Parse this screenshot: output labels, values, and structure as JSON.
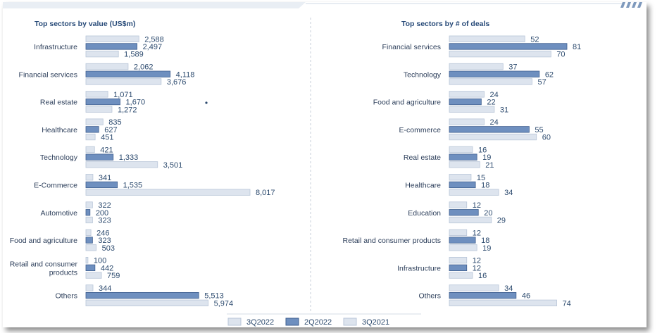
{
  "legend": [
    {
      "name": "3Q2022",
      "color": "#dde4ee",
      "stroke": "#b9c6d8"
    },
    {
      "name": "2Q2022",
      "color": "#6e8fbf",
      "stroke": "#3f5f8f"
    },
    {
      "name": "3Q2021",
      "color": "#dde4ee",
      "stroke": "#b9c6d8"
    }
  ],
  "chart_data": [
    {
      "type": "bar",
      "orientation": "horizontal",
      "title": "Top sectors by value (US$m)",
      "categories": [
        "Infrastructure",
        "Financial services",
        "Real estate",
        "Healthcare",
        "Technology",
        "E-Commerce",
        "Automotive",
        "Food and agriculture",
        "Retail and consumer products",
        "Others"
      ],
      "series": [
        {
          "name": "3Q2022",
          "values": [
            2588,
            2062,
            1071,
            835,
            421,
            341,
            322,
            246,
            100,
            344
          ],
          "labels": [
            "2,588",
            "2,062",
            "1,071",
            "835",
            "421",
            "341",
            "322",
            "246",
            "100",
            "344"
          ]
        },
        {
          "name": "2Q2022",
          "values": [
            2497,
            4118,
            1670,
            627,
            1333,
            1535,
            200,
            323,
            442,
            5513
          ],
          "labels": [
            "2,497",
            "4,118",
            "1,670",
            "627",
            "1,333",
            "1,535",
            "200",
            "323",
            "442",
            "5,513"
          ]
        },
        {
          "name": "3Q2021",
          "values": [
            1589,
            3676,
            1272,
            451,
            3501,
            8017,
            323,
            503,
            759,
            5974
          ],
          "labels": [
            "1,589",
            "3,676",
            "1,272",
            "451",
            "3,501",
            "8,017",
            "323",
            "503",
            "759",
            "5,974"
          ]
        }
      ],
      "xlim": [
        0,
        8017
      ]
    },
    {
      "type": "bar",
      "orientation": "horizontal",
      "title": "Top sectors by # of deals",
      "categories": [
        "Financial services",
        "Technology",
        "Food and agriculture",
        "E-commerce",
        "Real estate",
        "Healthcare",
        "Education",
        "Retail and consumer products",
        "Infrastructure",
        "Others"
      ],
      "series": [
        {
          "name": "3Q2022",
          "values": [
            52,
            37,
            24,
            24,
            16,
            15,
            12,
            12,
            12,
            34
          ],
          "labels": [
            "52",
            "37",
            "24",
            "24",
            "16",
            "15",
            "12",
            "12",
            "12",
            "34"
          ]
        },
        {
          "name": "2Q2022",
          "values": [
            81,
            62,
            22,
            55,
            19,
            18,
            20,
            18,
            12,
            46
          ],
          "labels": [
            "81",
            "62",
            "22",
            "55",
            "19",
            "18",
            "20",
            "18",
            "12",
            "46"
          ]
        },
        {
          "name": "3Q2021",
          "values": [
            70,
            57,
            31,
            60,
            21,
            34,
            29,
            19,
            16,
            74
          ],
          "labels": [
            "70",
            "57",
            "31",
            "60",
            "21",
            "34",
            "29",
            "19",
            "16",
            "74"
          ]
        }
      ],
      "xlim": [
        0,
        81
      ]
    }
  ]
}
